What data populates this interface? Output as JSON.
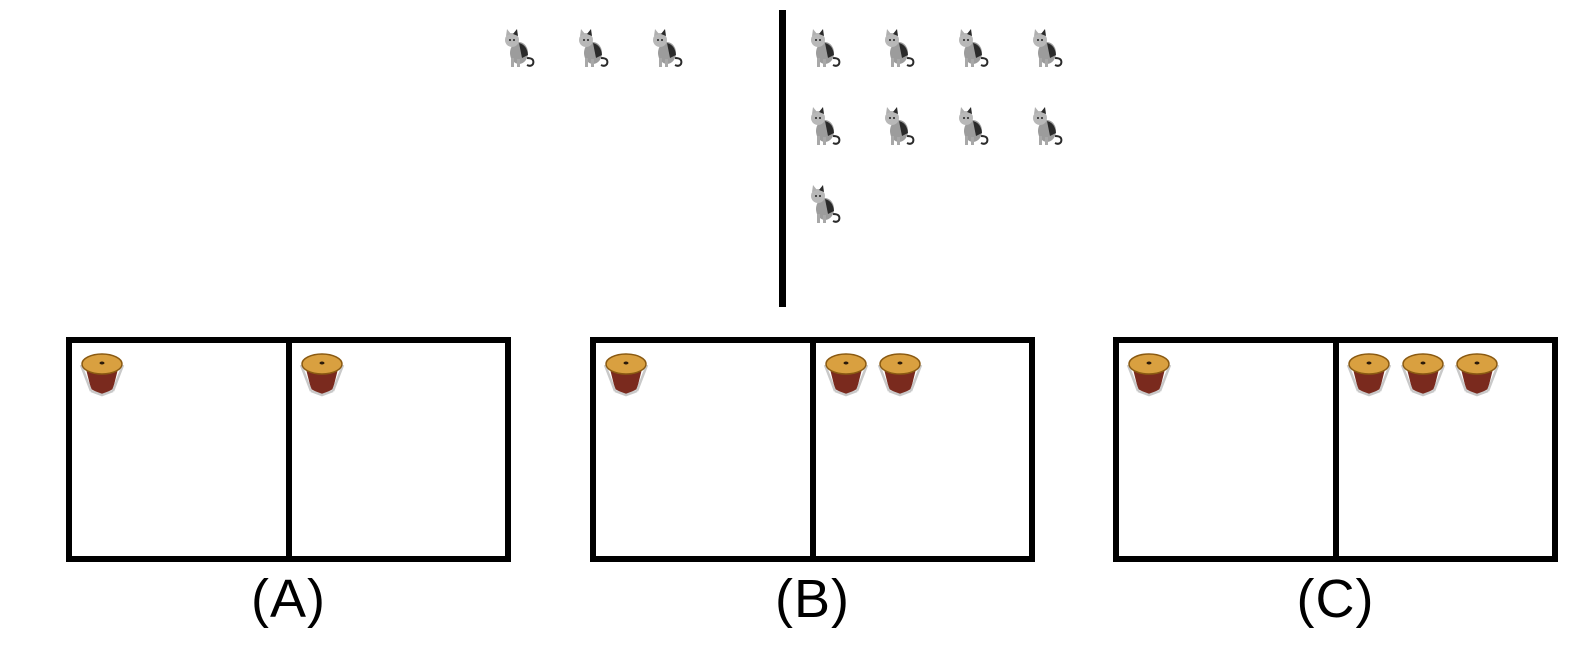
{
  "top": {
    "left_group": {
      "icon": "cat-icon",
      "count": 3
    },
    "right_group": {
      "icon": "cat-icon",
      "count": 9
    }
  },
  "options": [
    {
      "id": "A",
      "label": "(A)",
      "icon": "drum-icon",
      "left_count": 1,
      "right_count": 1
    },
    {
      "id": "B",
      "label": "(B)",
      "icon": "drum-icon",
      "left_count": 1,
      "right_count": 2
    },
    {
      "id": "C",
      "label": "(C)",
      "icon": "drum-icon",
      "left_count": 1,
      "right_count": 3
    }
  ],
  "colors": {
    "line": "#000000",
    "drum_head": "#d9a040",
    "drum_body": "#7a2a1e",
    "cat_gray": "#9c9c9c",
    "cat_dark": "#2a2a2a"
  }
}
